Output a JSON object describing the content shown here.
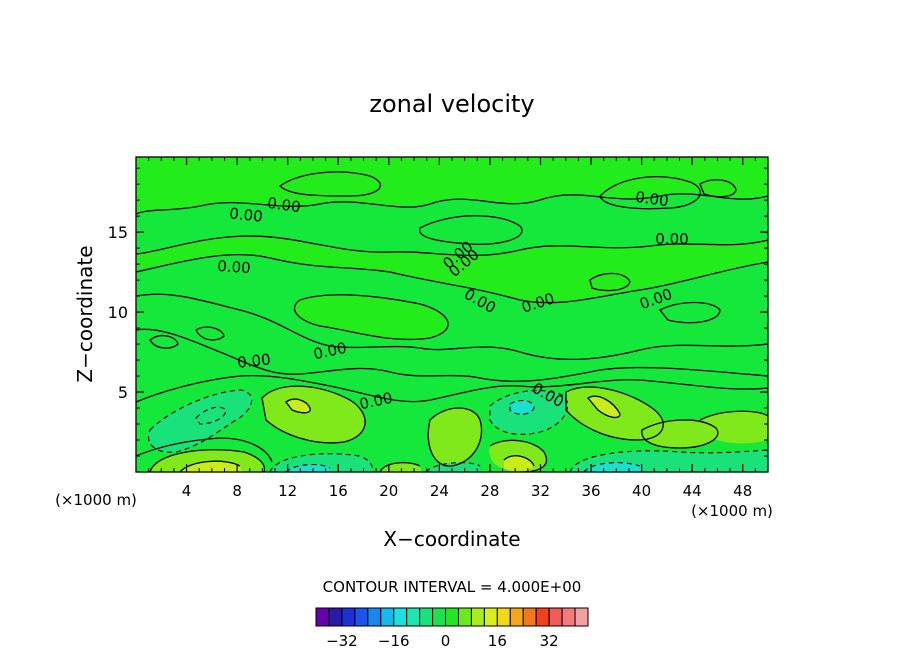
{
  "chart_data": {
    "type": "contour",
    "title": "zonal velocity",
    "xlabel": "X−coordinate",
    "ylabel": "Z−coordinate",
    "x_unit_label_left": "(×1000 m)",
    "x_unit_label_right": "(×1000 m)",
    "x_ticks": [
      "4",
      "8",
      "12",
      "16",
      "20",
      "24",
      "28",
      "32",
      "36",
      "40",
      "44",
      "48"
    ],
    "y_ticks": [
      "5",
      "10",
      "15"
    ],
    "xlim": [
      0,
      50
    ],
    "ylim": [
      0,
      19.7
    ],
    "contour_interval_text": "CONTOUR INTERVAL = 4.000E+00",
    "contour_labels": [
      "0.00",
      "0.00",
      "0.00",
      "0.00",
      "0.00",
      "0.00",
      "0.00",
      "0.00",
      "0.00",
      "0.00",
      "0.00",
      "0.00",
      "0.00",
      "0.00"
    ],
    "colorbar": {
      "ticks": [
        "−32",
        "−16",
        "0",
        "16",
        "32"
      ],
      "tick_values": [
        -32,
        -16,
        0,
        16,
        32
      ],
      "colors": [
        "#6600aa",
        "#2a1aa8",
        "#1f2fd6",
        "#1a55f0",
        "#1a86f0",
        "#18b7ee",
        "#1ae0e0",
        "#1ae8b0",
        "#1ae27a",
        "#1ae24a",
        "#22e61e",
        "#66ec1a",
        "#a8ee1a",
        "#d6ee1a",
        "#f2d81a",
        "#f2a81a",
        "#f2781a",
        "#f2401a",
        "#f25a5a",
        "#f27a7a",
        "#f5a0a0"
      ]
    },
    "colors": {
      "background_field": "#14e83a",
      "upper_field": "#22ec1a",
      "positive_weak": "#7fe91a",
      "positive_strong": "#c8ee1a",
      "negative_weak": "#1ae27a",
      "negative_strong": "#1ae0d0"
    }
  }
}
